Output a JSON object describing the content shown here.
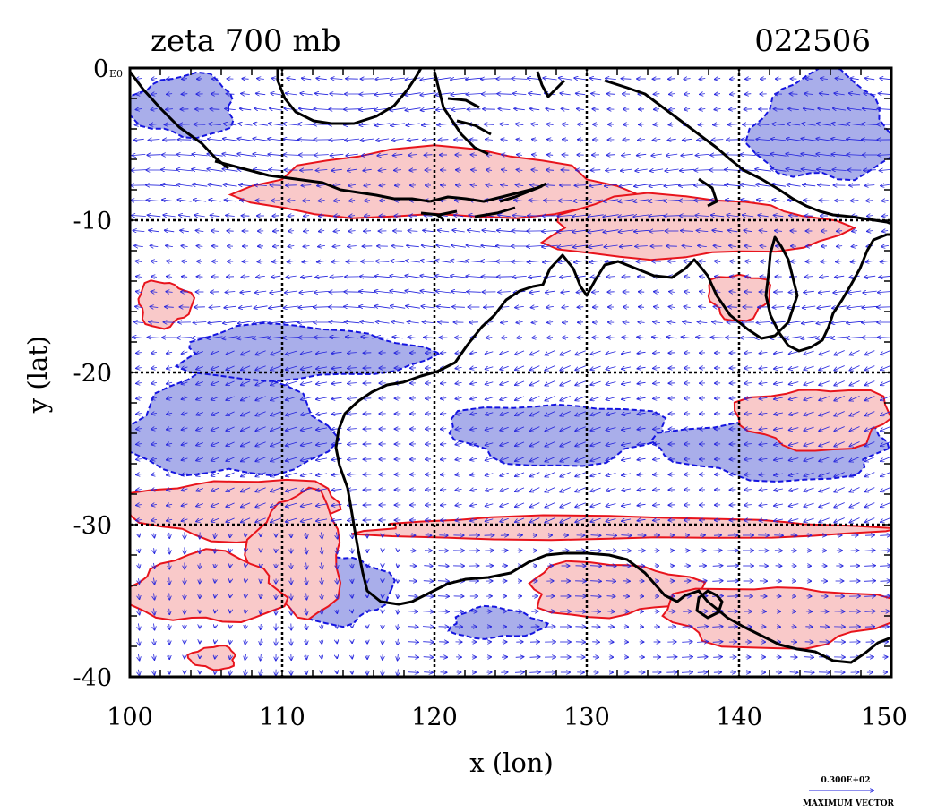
{
  "title": "zeta 700 mb",
  "timestamp": "022506",
  "xlabel": "x (lon)",
  "ylabel": "y (lat)",
  "corner_label": "0",
  "corner_sublabel": "E0",
  "x_ticks": [
    "100",
    "110",
    "120",
    "130",
    "140",
    "150"
  ],
  "y_ticks": [
    "-10",
    "-20",
    "-30",
    "-40"
  ],
  "vector_scale_value": "0.300E+02",
  "vector_scale_label": "MAXIMUM VECTOR",
  "colors": {
    "positive_fill": "#f9c9c9",
    "positive_line": "#e8141c",
    "negative_fill": "#a9aeea",
    "negative_line": "#1515e0",
    "vectors": "#2222dd",
    "coast": "#000000"
  },
  "chart_data": {
    "type": "contour-vector map",
    "variable": "zeta",
    "level": "700 mb",
    "xlim": [
      100,
      150
    ],
    "ylim": [
      -40,
      0
    ],
    "x_gridlines": [
      110,
      120,
      130,
      140
    ],
    "y_gridlines": [
      -10,
      -20,
      -30
    ],
    "grid": true,
    "positive_regions": [
      {
        "lon": [
          108,
          132
        ],
        "lat": [
          -5.5,
          -10
        ]
      },
      {
        "lon": [
          127,
          146
        ],
        "lat": [
          -8.5,
          -12.5
        ]
      },
      {
        "lon": [
          100.5,
          104
        ],
        "lat": [
          -14,
          -17
        ]
      },
      {
        "lon": [
          138,
          142
        ],
        "lat": [
          -13.5,
          -16.5
        ]
      },
      {
        "lon": [
          100,
          114
        ],
        "lat": [
          -27,
          -31
        ]
      },
      {
        "lon": [
          108,
          114
        ],
        "lat": [
          -28,
          -36
        ]
      },
      {
        "lon": [
          100,
          110
        ],
        "lat": [
          -32,
          -36.5
        ]
      },
      {
        "lon": [
          115,
          148
        ],
        "lat": [
          -29.5,
          -31
        ]
      },
      {
        "lon": [
          126,
          137
        ],
        "lat": [
          -32.5,
          -36
        ]
      },
      {
        "lon": [
          135,
          150
        ],
        "lat": [
          -34,
          -38
        ]
      },
      {
        "lon": [
          140,
          150
        ],
        "lat": [
          -21,
          -25
        ]
      },
      {
        "lon": [
          104,
          107
        ],
        "lat": [
          -38,
          -39.5
        ]
      }
    ],
    "negative_regions": [
      {
        "lon": [
          100,
          113
        ],
        "lat": [
          -20,
          -27
        ]
      },
      {
        "lon": [
          103,
          119
        ],
        "lat": [
          -17,
          -20.5
        ]
      },
      {
        "lon": [
          111,
          117
        ],
        "lat": [
          -32,
          -36.5
        ]
      },
      {
        "lon": [
          121,
          135
        ],
        "lat": [
          -22,
          -26
        ]
      },
      {
        "lon": [
          135,
          150
        ],
        "lat": [
          -23,
          -27
        ]
      },
      {
        "lon": [
          100,
          107
        ],
        "lat": [
          -0.5,
          -4.5
        ]
      },
      {
        "lon": [
          141,
          150
        ],
        "lat": [
          -0.5,
          -7.5
        ]
      },
      {
        "lon": [
          121,
          127
        ],
        "lat": [
          -35.5,
          -37.5
        ]
      }
    ]
  }
}
